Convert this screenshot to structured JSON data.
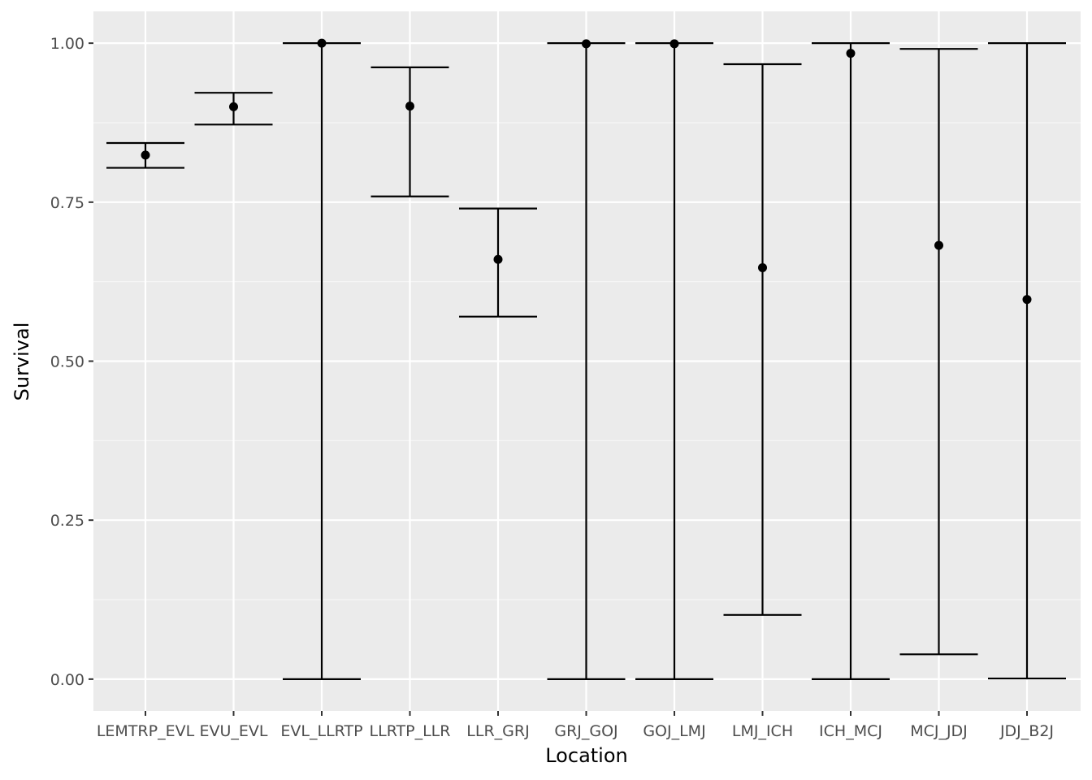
{
  "chart_data": {
    "type": "errorbar",
    "xlabel": "Location",
    "ylabel": "Survival",
    "ylim": [
      -0.05,
      1.05
    ],
    "y_ticks": [
      0.0,
      0.25,
      0.5,
      0.75,
      1.0
    ],
    "y_tick_labels": [
      "0.00",
      "0.25",
      "0.50",
      "0.75",
      "1.00"
    ],
    "grid": true,
    "colors": {
      "panel_background": "#ebebeb",
      "grid_major": "#ffffff",
      "grid_minor": "#f5f5f5",
      "marks": "#000000"
    },
    "categories": [
      "LEMTRP_EVL",
      "EVU_EVL",
      "EVL_LLRTP",
      "LLRTP_LLR",
      "LLR_GRJ",
      "GRJ_GOJ",
      "GOJ_LMJ",
      "LMJ_ICH",
      "ICH_MCJ",
      "MCJ_JDJ",
      "JDJ_B2J"
    ],
    "estimates": [
      0.824,
      0.9,
      1.0,
      0.901,
      0.66,
      0.999,
      0.999,
      0.647,
      0.984,
      0.682,
      0.597
    ],
    "lower": [
      0.804,
      0.872,
      0.0,
      0.759,
      0.57,
      0.0,
      0.0,
      0.101,
      0.0,
      0.039,
      0.001
    ],
    "upper": [
      0.843,
      0.922,
      1.0,
      0.962,
      0.74,
      1.0,
      1.0,
      0.967,
      1.0,
      0.991,
      1.0
    ]
  }
}
